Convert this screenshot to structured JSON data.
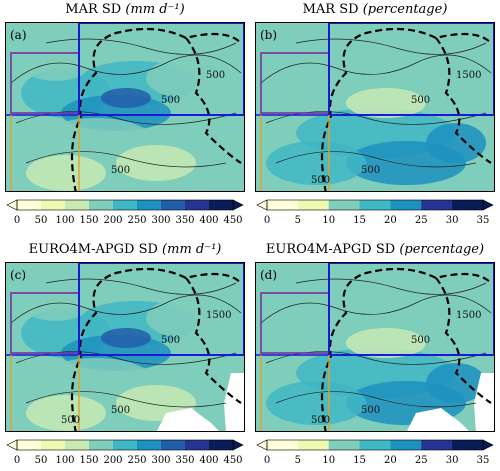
{
  "panels": [
    {
      "id": "a",
      "label": "(a)",
      "title": "MAR SD",
      "unit": "(mm d⁻¹)",
      "contour_labels": [
        "500",
        "500",
        "500"
      ],
      "cbar_ticks": [
        "0",
        "50",
        "100",
        "150",
        "200",
        "250",
        "300",
        "350",
        "400",
        "450"
      ],
      "scheme": "blue_mm"
    },
    {
      "id": "b",
      "label": "(b)",
      "title": "MAR SD",
      "unit": "(percentage)",
      "contour_labels": [
        "500",
        "1500",
        "500",
        "500"
      ],
      "cbar_ticks": [
        "0",
        "5",
        "10",
        "15",
        "20",
        "25",
        "30",
        "35"
      ],
      "scheme": "blue_pct"
    },
    {
      "id": "c",
      "label": "(c)",
      "title": "EURO4M-APGD SD",
      "unit": "(mm d⁻¹)",
      "contour_labels": [
        "500",
        "1500",
        "500",
        "500"
      ],
      "cbar_ticks": [
        "0",
        "50",
        "100",
        "150",
        "200",
        "250",
        "300",
        "350",
        "400",
        "450"
      ],
      "scheme": "blue_mm"
    },
    {
      "id": "d",
      "label": "(d)",
      "title": "EURO4M-APGD SD",
      "unit": "(percentage)",
      "contour_labels": [
        "500",
        "1500",
        "500",
        "500"
      ],
      "cbar_ticks": [
        "0",
        "5",
        "10",
        "15",
        "20",
        "25",
        "30",
        "35"
      ],
      "scheme": "blue_pct"
    }
  ],
  "colors": {
    "purple_box": "#7a2ea0",
    "blue_box": "#1a1ad6",
    "orange_line": "#e8a020",
    "palette": [
      "#ffffd9",
      "#edf8b1",
      "#c7e9b4",
      "#7fcdbb",
      "#41b6c4",
      "#1d91c0",
      "#225ea8",
      "#253494",
      "#081d58"
    ]
  }
}
